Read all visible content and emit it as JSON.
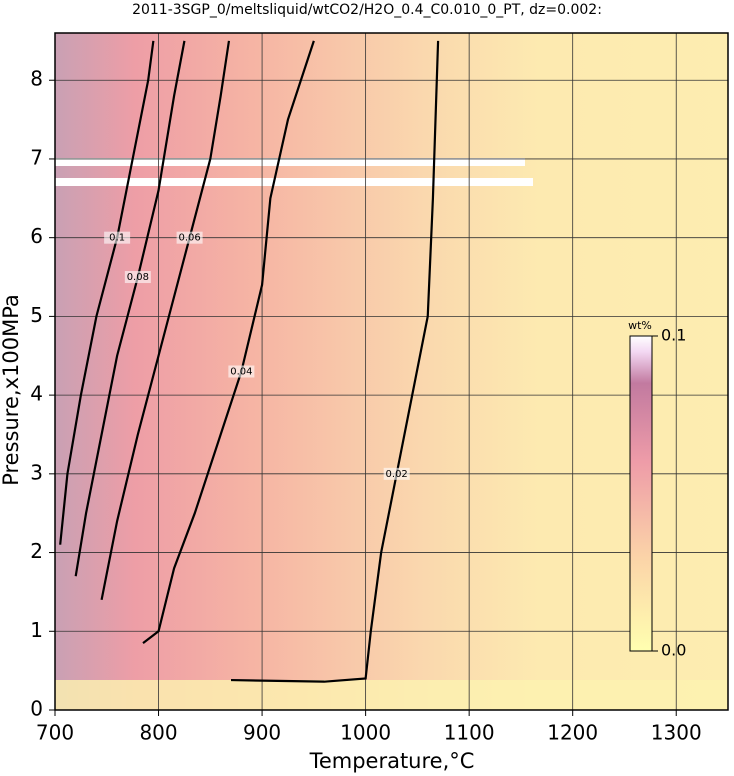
{
  "chart_data": {
    "type": "contour",
    "title": "2011-3SGP_0/meltsliquid/wtCO2/H2O_0.4_C0.010_0_PT, dz=0.002:",
    "x_label": "Temperature,°C",
    "y_label": "Pressure,x100MPa",
    "xlim": [
      700,
      1350
    ],
    "ylim": [
      0,
      8.6
    ],
    "xticks": [
      700,
      800,
      900,
      1000,
      1100,
      1200,
      1300
    ],
    "yticks": [
      0,
      1,
      2,
      3,
      4,
      5,
      6,
      7,
      8
    ],
    "grid": true,
    "contours": [
      {
        "level": 0.02,
        "x": [
          870,
          960,
          1000,
          1005,
          1015,
          1030,
          1045,
          1060,
          1065,
          1070
        ],
        "y": [
          0.38,
          0.36,
          0.4,
          1,
          2,
          3,
          4,
          5,
          6.5,
          8.5
        ]
      },
      {
        "level": 0.04,
        "x": [
          785,
          800,
          815,
          835,
          860,
          880,
          900,
          908,
          925,
          950
        ],
        "y": [
          0.85,
          1,
          1.8,
          2.5,
          3.5,
          4.3,
          5.4,
          6.5,
          7.5,
          8.5
        ]
      },
      {
        "level": 0.06,
        "x": [
          745,
          760,
          780,
          800,
          830,
          850,
          860,
          868
        ],
        "y": [
          1.4,
          2.4,
          3.5,
          4.5,
          6,
          7,
          7.8,
          8.5
        ]
      },
      {
        "level": 0.08,
        "x": [
          720,
          730,
          745,
          760,
          780,
          800,
          815,
          825
        ],
        "y": [
          1.7,
          2.5,
          3.5,
          4.5,
          5.5,
          6.6,
          7.8,
          8.5
        ]
      },
      {
        "level": 0.1,
        "x": [
          705,
          712,
          725,
          740,
          760,
          775,
          790,
          795
        ],
        "y": [
          2.1,
          3,
          4,
          5,
          6,
          7,
          8,
          8.5
        ]
      }
    ],
    "colorbar": {
      "label": "wt%",
      "lim": [
        0,
        0.1
      ],
      "ticks": [
        {
          "value": 0,
          "label": "0.0"
        },
        0.1
      ]
    }
  }
}
